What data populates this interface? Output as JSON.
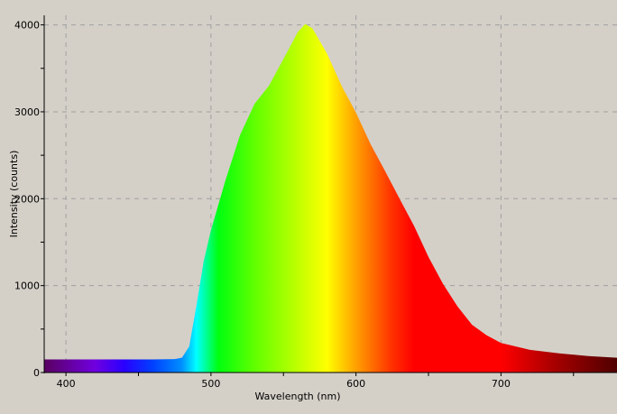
{
  "chart_data": {
    "type": "area",
    "xlabel": "Wavelength (nm)",
    "ylabel": "Intensity (counts)",
    "xlim": [
      385,
      780
    ],
    "ylim": [
      0,
      4110
    ],
    "x_ticks": [
      400,
      500,
      600,
      700
    ],
    "y_ticks": [
      0,
      1000,
      2000,
      3000,
      4000
    ],
    "grid": true,
    "fill": "spectral color gradient by wavelength",
    "x": [
      385,
      400,
      420,
      440,
      460,
      475,
      480,
      485,
      490,
      495,
      500,
      510,
      520,
      530,
      540,
      550,
      560,
      565,
      570,
      580,
      590,
      600,
      610,
      620,
      630,
      640,
      650,
      660,
      670,
      680,
      690,
      700,
      720,
      740,
      760,
      780
    ],
    "y": [
      150,
      150,
      150,
      150,
      150,
      155,
      170,
      300,
      770,
      1280,
      1640,
      2210,
      2730,
      3090,
      3300,
      3610,
      3920,
      4010,
      3960,
      3670,
      3300,
      2990,
      2630,
      2320,
      2000,
      1690,
      1330,
      1020,
      760,
      550,
      430,
      340,
      260,
      220,
      190,
      170
    ],
    "gradient_stops": [
      [
        385,
        "#5a0060"
      ],
      [
        420,
        "#7000e0"
      ],
      [
        440,
        "#2a00ff"
      ],
      [
        460,
        "#0040ff"
      ],
      [
        480,
        "#0090ff"
      ],
      [
        490,
        "#00ffff"
      ],
      [
        505,
        "#00ff10"
      ],
      [
        530,
        "#60ff00"
      ],
      [
        550,
        "#a0ff00"
      ],
      [
        580,
        "#ffff00"
      ],
      [
        600,
        "#ffa000"
      ],
      [
        625,
        "#ff3000"
      ],
      [
        640,
        "#ff0000"
      ],
      [
        700,
        "#ff0000"
      ],
      [
        740,
        "#a00000"
      ],
      [
        780,
        "#500000"
      ]
    ]
  }
}
